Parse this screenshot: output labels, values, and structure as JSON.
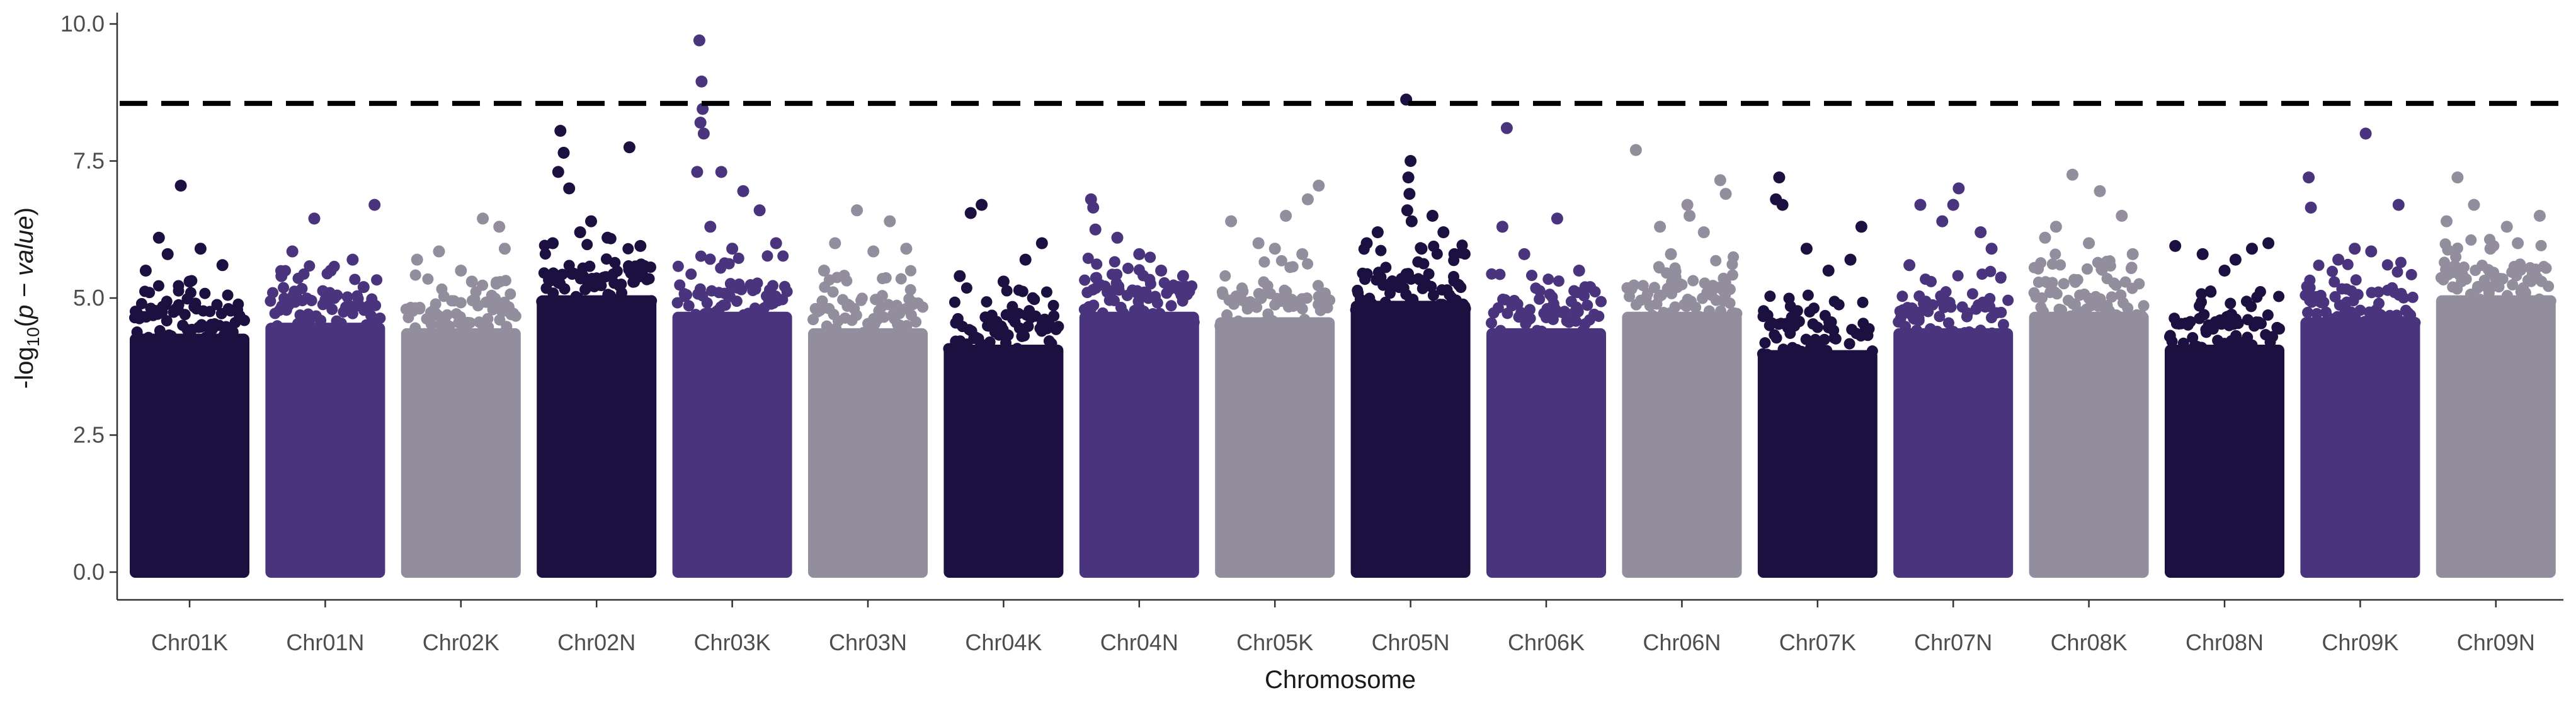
{
  "chart_data": {
    "type": "scatter",
    "subtype": "manhattan",
    "title": "",
    "xlabel": "Chromosome",
    "ylabel": "-log10(p - value)",
    "ylim": [
      -0.4,
      10.2
    ],
    "yticks": [
      "0.0",
      "2.5",
      "5.0",
      "7.5",
      "10.0"
    ],
    "ytick_values": [
      0,
      2.5,
      5,
      7.5,
      10
    ],
    "threshold": 8.55,
    "threshold_style": "dashed",
    "grid": false,
    "legend": "none",
    "palette": [
      "#1c1040",
      "#4a347d",
      "#928e9e"
    ],
    "categories": [
      "Chr01K",
      "Chr01N",
      "Chr02K",
      "Chr02N",
      "Chr03K",
      "Chr03N",
      "Chr04K",
      "Chr04N",
      "Chr05K",
      "Chr05N",
      "Chr06K",
      "Chr06N",
      "Chr07K",
      "Chr07N",
      "Chr08K",
      "Chr08N",
      "Chr09K",
      "Chr09N"
    ],
    "dense_top": [
      4.5,
      4.7,
      4.6,
      5.2,
      4.9,
      4.6,
      4.3,
      4.9,
      4.8,
      5.1,
      4.6,
      4.9,
      4.2,
      4.6,
      4.9,
      4.3,
      4.8,
      5.2
    ],
    "peaks": [
      [
        [
          0.42,
          7.05
        ],
        [
          0.22,
          6.1
        ],
        [
          0.6,
          5.9
        ],
        [
          0.3,
          5.8
        ],
        [
          0.8,
          5.6
        ],
        [
          0.1,
          5.5
        ],
        [
          0.5,
          5.3
        ]
      ],
      [
        [
          0.95,
          6.7
        ],
        [
          0.4,
          6.45
        ],
        [
          0.2,
          5.85
        ],
        [
          0.75,
          5.7
        ],
        [
          0.55,
          5.5
        ],
        [
          0.1,
          5.4
        ],
        [
          0.85,
          5.2
        ]
      ],
      [
        [
          0.7,
          6.45
        ],
        [
          0.85,
          6.3
        ],
        [
          0.3,
          5.85
        ],
        [
          0.1,
          5.7
        ],
        [
          0.5,
          5.5
        ],
        [
          0.9,
          5.9
        ],
        [
          0.6,
          5.3
        ]
      ],
      [
        [
          0.17,
          8.05
        ],
        [
          0.2,
          7.65
        ],
        [
          0.15,
          7.3
        ],
        [
          0.25,
          7.0
        ],
        [
          0.8,
          7.75
        ],
        [
          0.45,
          6.4
        ],
        [
          0.6,
          6.1
        ],
        [
          0.9,
          5.95
        ],
        [
          0.35,
          6.2
        ],
        [
          0.1,
          6.0
        ]
      ],
      [
        [
          0.2,
          9.7
        ],
        [
          0.22,
          8.95
        ],
        [
          0.23,
          8.45
        ],
        [
          0.21,
          8.2
        ],
        [
          0.24,
          8.0
        ],
        [
          0.18,
          7.3
        ],
        [
          0.4,
          7.3
        ],
        [
          0.6,
          6.95
        ],
        [
          0.75,
          6.6
        ],
        [
          0.3,
          6.3
        ],
        [
          0.9,
          6.0
        ],
        [
          0.5,
          5.9
        ]
      ],
      [
        [
          0.4,
          6.6
        ],
        [
          0.7,
          6.4
        ],
        [
          0.2,
          6.0
        ],
        [
          0.55,
          5.85
        ],
        [
          0.85,
          5.9
        ],
        [
          0.1,
          5.5
        ]
      ],
      [
        [
          0.3,
          6.7
        ],
        [
          0.2,
          6.55
        ],
        [
          0.7,
          5.7
        ],
        [
          0.85,
          6.0
        ],
        [
          0.5,
          5.3
        ],
        [
          0.1,
          5.4
        ]
      ],
      [
        [
          0.06,
          6.8
        ],
        [
          0.08,
          6.65
        ],
        [
          0.1,
          6.25
        ],
        [
          0.3,
          6.1
        ],
        [
          0.5,
          5.8
        ],
        [
          0.7,
          5.5
        ],
        [
          0.9,
          5.4
        ]
      ],
      [
        [
          0.1,
          6.4
        ],
        [
          0.9,
          7.05
        ],
        [
          0.8,
          6.8
        ],
        [
          0.6,
          6.5
        ],
        [
          0.35,
          6.0
        ],
        [
          0.5,
          5.9
        ],
        [
          0.75,
          5.8
        ]
      ],
      [
        [
          0.46,
          8.62
        ],
        [
          0.5,
          7.5
        ],
        [
          0.48,
          7.2
        ],
        [
          0.49,
          6.9
        ],
        [
          0.47,
          6.6
        ],
        [
          0.51,
          6.4
        ],
        [
          0.2,
          6.2
        ],
        [
          0.7,
          6.5
        ],
        [
          0.8,
          6.2
        ],
        [
          0.6,
          5.9
        ],
        [
          0.9,
          5.8
        ],
        [
          0.1,
          6.0
        ]
      ],
      [
        [
          0.14,
          8.1
        ],
        [
          0.6,
          6.45
        ],
        [
          0.1,
          6.3
        ],
        [
          0.3,
          5.8
        ],
        [
          0.8,
          5.5
        ],
        [
          0.9,
          5.2
        ]
      ],
      [
        [
          0.08,
          7.7
        ],
        [
          0.55,
          6.7
        ],
        [
          0.57,
          6.5
        ],
        [
          0.85,
          7.15
        ],
        [
          0.9,
          6.9
        ],
        [
          0.3,
          6.3
        ],
        [
          0.7,
          6.2
        ],
        [
          0.4,
          5.8
        ]
      ],
      [
        [
          0.15,
          7.2
        ],
        [
          0.12,
          6.8
        ],
        [
          0.18,
          6.7
        ],
        [
          0.4,
          5.9
        ],
        [
          0.9,
          6.3
        ],
        [
          0.6,
          5.5
        ],
        [
          0.8,
          5.7
        ]
      ],
      [
        [
          0.55,
          7.0
        ],
        [
          0.5,
          6.7
        ],
        [
          0.2,
          6.7
        ],
        [
          0.4,
          6.4
        ],
        [
          0.75,
          6.2
        ],
        [
          0.85,
          5.9
        ],
        [
          0.1,
          5.6
        ]
      ],
      [
        [
          0.35,
          7.25
        ],
        [
          0.6,
          6.95
        ],
        [
          0.2,
          6.3
        ],
        [
          0.8,
          6.5
        ],
        [
          0.5,
          6.0
        ],
        [
          0.9,
          5.8
        ],
        [
          0.1,
          6.1
        ]
      ],
      [
        [
          0.05,
          5.95
        ],
        [
          0.3,
          5.8
        ],
        [
          0.75,
          5.9
        ],
        [
          0.9,
          6.0
        ],
        [
          0.5,
          5.5
        ],
        [
          0.6,
          5.7
        ]
      ],
      [
        [
          0.55,
          8.0
        ],
        [
          0.03,
          7.2
        ],
        [
          0.05,
          6.65
        ],
        [
          0.85,
          6.7
        ],
        [
          0.6,
          5.85
        ],
        [
          0.3,
          5.7
        ],
        [
          0.45,
          5.9
        ]
      ],
      [
        [
          0.15,
          7.2
        ],
        [
          0.3,
          6.7
        ],
        [
          0.05,
          6.4
        ],
        [
          0.6,
          6.3
        ],
        [
          0.9,
          6.5
        ],
        [
          0.7,
          6.0
        ],
        [
          0.45,
          5.9
        ]
      ]
    ]
  }
}
